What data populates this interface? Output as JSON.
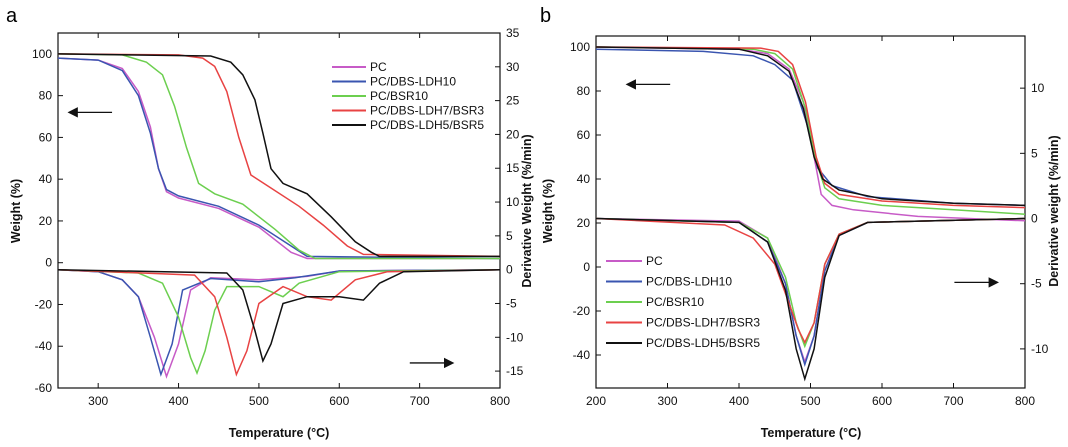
{
  "chart_data": [
    {
      "panel_label": "a",
      "type": "line",
      "xlabel": "Temperature (°C)",
      "ylabel": "Weight (%)",
      "y2label": "Derivative Weight (%/min)",
      "xlim": [
        250,
        800
      ],
      "ylim": [
        -60,
        110
      ],
      "y2lim": [
        -17.5,
        35
      ],
      "xticks": [
        300,
        400,
        500,
        600,
        700,
        800
      ],
      "yticks": [
        -60,
        -40,
        -20,
        0,
        20,
        40,
        60,
        80,
        100
      ],
      "y2ticks": [
        -15,
        -10,
        -5,
        0,
        5,
        10,
        15,
        20,
        25,
        30,
        35
      ],
      "legend_position": "top-right",
      "colors": [
        "#c75bc7",
        "#3a55b0",
        "#6ccf4f",
        "#e84343",
        "#111111"
      ],
      "arrows": [
        {
          "direction": "left",
          "at": [
            265,
            72
          ]
        },
        {
          "direction": "right",
          "at": [
            740,
            -48
          ]
        }
      ],
      "series": [
        {
          "name": "PC",
          "weight": [
            [
              250,
              98
            ],
            [
              300,
              97
            ],
            [
              330,
              93
            ],
            [
              350,
              82
            ],
            [
              365,
              65
            ],
            [
              375,
              45
            ],
            [
              385,
              34
            ],
            [
              400,
              31
            ],
            [
              450,
              26
            ],
            [
              500,
              17
            ],
            [
              540,
              5
            ],
            [
              560,
              2
            ],
            [
              800,
              2
            ]
          ],
          "derivative": [
            [
              250,
              0
            ],
            [
              300,
              -0.3
            ],
            [
              330,
              -1.5
            ],
            [
              350,
              -4
            ],
            [
              370,
              -10
            ],
            [
              385,
              -15.8
            ],
            [
              400,
              -11
            ],
            [
              415,
              -3
            ],
            [
              440,
              -1.2
            ],
            [
              500,
              -1.5
            ],
            [
              560,
              -1
            ],
            [
              600,
              -0.2
            ],
            [
              800,
              0
            ]
          ]
        },
        {
          "name": "PC/DBS-LDH10",
          "weight": [
            [
              250,
              98
            ],
            [
              300,
              97
            ],
            [
              330,
              92
            ],
            [
              350,
              80
            ],
            [
              365,
              62
            ],
            [
              375,
              45
            ],
            [
              385,
              35
            ],
            [
              400,
              32
            ],
            [
              450,
              27
            ],
            [
              500,
              18
            ],
            [
              540,
              8
            ],
            [
              560,
              3
            ],
            [
              800,
              2
            ]
          ],
          "derivative": [
            [
              250,
              0
            ],
            [
              300,
              -0.3
            ],
            [
              330,
              -1.5
            ],
            [
              350,
              -4
            ],
            [
              365,
              -10
            ],
            [
              378,
              -15.5
            ],
            [
              392,
              -11
            ],
            [
              405,
              -3
            ],
            [
              440,
              -1.3
            ],
            [
              500,
              -1.8
            ],
            [
              545,
              -1.2
            ],
            [
              600,
              -0.2
            ],
            [
              800,
              0
            ]
          ]
        },
        {
          "name": "PC/BSR10",
          "weight": [
            [
              250,
              100
            ],
            [
              330,
              99.5
            ],
            [
              360,
              96
            ],
            [
              380,
              90
            ],
            [
              395,
              75
            ],
            [
              410,
              55
            ],
            [
              425,
              38
            ],
            [
              445,
              33
            ],
            [
              480,
              28
            ],
            [
              520,
              16
            ],
            [
              550,
              6
            ],
            [
              570,
              2
            ],
            [
              800,
              2
            ]
          ],
          "derivative": [
            [
              250,
              0
            ],
            [
              350,
              -0.5
            ],
            [
              380,
              -2
            ],
            [
              400,
              -7
            ],
            [
              415,
              -13
            ],
            [
              423,
              -15.3
            ],
            [
              433,
              -12
            ],
            [
              445,
              -6
            ],
            [
              460,
              -2.5
            ],
            [
              500,
              -2.5
            ],
            [
              530,
              -4
            ],
            [
              550,
              -2
            ],
            [
              600,
              -0.3
            ],
            [
              800,
              0
            ]
          ]
        },
        {
          "name": "PC/DBS-LDH7/BSR3",
          "weight": [
            [
              250,
              100
            ],
            [
              400,
              99.5
            ],
            [
              430,
              98
            ],
            [
              445,
              94
            ],
            [
              460,
              82
            ],
            [
              475,
              60
            ],
            [
              490,
              42
            ],
            [
              510,
              37
            ],
            [
              550,
              27
            ],
            [
              580,
              18
            ],
            [
              610,
              8
            ],
            [
              630,
              4
            ],
            [
              800,
              3
            ]
          ],
          "derivative": [
            [
              250,
              0
            ],
            [
              420,
              -0.8
            ],
            [
              445,
              -4
            ],
            [
              460,
              -10
            ],
            [
              472,
              -15.5
            ],
            [
              485,
              -12
            ],
            [
              500,
              -5
            ],
            [
              530,
              -2.5
            ],
            [
              560,
              -4
            ],
            [
              590,
              -4.5
            ],
            [
              620,
              -1.5
            ],
            [
              660,
              -0.3
            ],
            [
              800,
              0
            ]
          ]
        },
        {
          "name": "PC/DBS-LDH5/BSR5",
          "weight": [
            [
              250,
              100
            ],
            [
              440,
              99
            ],
            [
              465,
              96
            ],
            [
              480,
              90
            ],
            [
              495,
              78
            ],
            [
              505,
              62
            ],
            [
              515,
              45
            ],
            [
              530,
              38
            ],
            [
              560,
              33
            ],
            [
              590,
              22
            ],
            [
              620,
              10
            ],
            [
              640,
              5
            ],
            [
              650,
              3
            ],
            [
              800,
              3
            ]
          ],
          "derivative": [
            [
              250,
              0
            ],
            [
              460,
              -0.5
            ],
            [
              480,
              -3
            ],
            [
              495,
              -9
            ],
            [
              505,
              -13.5
            ],
            [
              515,
              -11
            ],
            [
              530,
              -5
            ],
            [
              560,
              -4
            ],
            [
              600,
              -4
            ],
            [
              630,
              -4.5
            ],
            [
              650,
              -2
            ],
            [
              680,
              -0.3
            ],
            [
              800,
              0
            ]
          ]
        }
      ]
    },
    {
      "panel_label": "b",
      "type": "line",
      "xlabel": "Temperature (°C)",
      "ylabel": "Weight (%)",
      "y2label": "Derivative weight (%/min)",
      "xlim": [
        200,
        800
      ],
      "ylim": [
        -55,
        105
      ],
      "y2lim": [
        -13,
        14
      ],
      "xticks": [
        200,
        300,
        400,
        500,
        600,
        700,
        800
      ],
      "yticks": [
        -40,
        -20,
        0,
        20,
        40,
        60,
        80,
        100
      ],
      "y2ticks": [
        -10,
        -5,
        0,
        5,
        10
      ],
      "legend_position": "bottom-left",
      "colors": [
        "#c75bc7",
        "#3a55b0",
        "#6ccf4f",
        "#e84343",
        "#111111"
      ],
      "arrows": [
        {
          "direction": "left",
          "at": [
            245,
            83
          ]
        },
        {
          "direction": "right",
          "at": [
            760,
            -7
          ]
        }
      ],
      "series": [
        {
          "name": "PC",
          "weight": [
            [
              200,
              100
            ],
            [
              400,
              99
            ],
            [
              440,
              97
            ],
            [
              470,
              90
            ],
            [
              490,
              75
            ],
            [
              505,
              50
            ],
            [
              515,
              33
            ],
            [
              530,
              28
            ],
            [
              560,
              26
            ],
            [
              650,
              23
            ],
            [
              800,
              21
            ]
          ],
          "derivative": [
            [
              200,
              0
            ],
            [
              400,
              -0.2
            ],
            [
              440,
              -1.5
            ],
            [
              465,
              -5
            ],
            [
              480,
              -9
            ],
            [
              492,
              -11
            ],
            [
              505,
              -9
            ],
            [
              520,
              -4
            ],
            [
              540,
              -1.2
            ],
            [
              580,
              -0.3
            ],
            [
              800,
              0
            ]
          ]
        },
        {
          "name": "PC/DBS-LDH10",
          "weight": [
            [
              200,
              99
            ],
            [
              350,
              98
            ],
            [
              420,
              96
            ],
            [
              450,
              92
            ],
            [
              475,
              85
            ],
            [
              495,
              65
            ],
            [
              510,
              45
            ],
            [
              530,
              37
            ],
            [
              580,
              32
            ],
            [
              700,
              29
            ],
            [
              800,
              28
            ]
          ],
          "derivative": [
            [
              200,
              0
            ],
            [
              400,
              -0.3
            ],
            [
              440,
              -1.8
            ],
            [
              465,
              -5
            ],
            [
              480,
              -9
            ],
            [
              492,
              -11.2
            ],
            [
              505,
              -9
            ],
            [
              520,
              -4
            ],
            [
              540,
              -1.3
            ],
            [
              580,
              -0.3
            ],
            [
              800,
              0
            ]
          ]
        },
        {
          "name": "PC/BSR10",
          "weight": [
            [
              200,
              100
            ],
            [
              420,
              99
            ],
            [
              450,
              97
            ],
            [
              475,
              90
            ],
            [
              493,
              72
            ],
            [
              508,
              48
            ],
            [
              520,
              36
            ],
            [
              540,
              31
            ],
            [
              600,
              28
            ],
            [
              700,
              26
            ],
            [
              800,
              24
            ]
          ],
          "derivative": [
            [
              200,
              0
            ],
            [
              400,
              -0.3
            ],
            [
              440,
              -1.5
            ],
            [
              465,
              -4.5
            ],
            [
              480,
              -8
            ],
            [
              492,
              -9.8
            ],
            [
              505,
              -8
            ],
            [
              520,
              -3.5
            ],
            [
              540,
              -1.2
            ],
            [
              580,
              -0.3
            ],
            [
              800,
              0
            ]
          ]
        },
        {
          "name": "PC/DBS-LDH7/BSR3",
          "weight": [
            [
              200,
              100
            ],
            [
              430,
              99.5
            ],
            [
              455,
              98
            ],
            [
              475,
              92
            ],
            [
              493,
              75
            ],
            [
              508,
              50
            ],
            [
              520,
              38
            ],
            [
              540,
              33
            ],
            [
              600,
              30
            ],
            [
              700,
              28
            ],
            [
              800,
              27
            ]
          ],
          "derivative": [
            [
              200,
              0
            ],
            [
              380,
              -0.5
            ],
            [
              420,
              -1.5
            ],
            [
              450,
              -3.5
            ],
            [
              470,
              -6.5
            ],
            [
              483,
              -8.5
            ],
            [
              492,
              -9.5
            ],
            [
              505,
              -8
            ],
            [
              520,
              -3.5
            ],
            [
              540,
              -1.2
            ],
            [
              580,
              -0.3
            ],
            [
              800,
              0
            ]
          ]
        },
        {
          "name": "PC/DBS-LDH5/BSR5",
          "weight": [
            [
              200,
              100
            ],
            [
              400,
              99
            ],
            [
              440,
              96
            ],
            [
              470,
              89
            ],
            [
              490,
              72
            ],
            [
              505,
              50
            ],
            [
              517,
              40
            ],
            [
              540,
              35
            ],
            [
              600,
              31
            ],
            [
              700,
              29
            ],
            [
              800,
              28
            ]
          ],
          "derivative": [
            [
              200,
              0
            ],
            [
              400,
              -0.3
            ],
            [
              440,
              -1.8
            ],
            [
              465,
              -5.5
            ],
            [
              480,
              -10
            ],
            [
              492,
              -12.3
            ],
            [
              505,
              -10
            ],
            [
              520,
              -4.5
            ],
            [
              540,
              -1.3
            ],
            [
              580,
              -0.3
            ],
            [
              800,
              0
            ]
          ]
        }
      ]
    }
  ]
}
